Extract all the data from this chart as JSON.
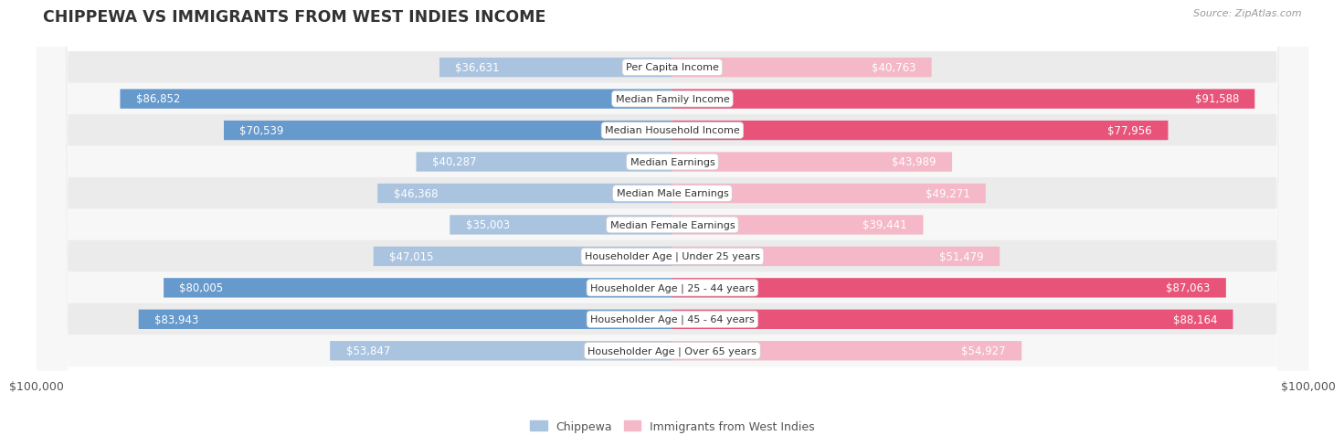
{
  "title": "CHIPPEWA VS IMMIGRANTS FROM WEST INDIES INCOME",
  "source": "Source: ZipAtlas.com",
  "max_value": 100000,
  "categories": [
    "Per Capita Income",
    "Median Family Income",
    "Median Household Income",
    "Median Earnings",
    "Median Male Earnings",
    "Median Female Earnings",
    "Householder Age | Under 25 years",
    "Householder Age | 25 - 44 years",
    "Householder Age | 45 - 64 years",
    "Householder Age | Over 65 years"
  ],
  "chippewa": [
    36631,
    86852,
    70539,
    40287,
    46368,
    35003,
    47015,
    80005,
    83943,
    53847
  ],
  "west_indies": [
    40763,
    91588,
    77956,
    43989,
    49271,
    39441,
    51479,
    87063,
    88164,
    54927
  ],
  "chippewa_labels": [
    "$36,631",
    "$86,852",
    "$70,539",
    "$40,287",
    "$46,368",
    "$35,003",
    "$47,015",
    "$80,005",
    "$83,943",
    "$53,847"
  ],
  "west_indies_labels": [
    "$40,763",
    "$91,588",
    "$77,956",
    "$43,989",
    "$49,271",
    "$39,441",
    "$51,479",
    "$87,063",
    "$88,164",
    "$54,927"
  ],
  "chippewa_color_light": "#aac4e0",
  "chippewa_color_dark": "#6699cc",
  "west_indies_color_light": "#f4b8c8",
  "west_indies_color_dark": "#e8537a",
  "dark_threshold": 65000,
  "bar_height": 0.62,
  "row_bg_odd": "#ebebeb",
  "row_bg_even": "#f7f7f7",
  "background_color": "#ffffff",
  "legend_chippewa": "Chippewa",
  "legend_west_indies": "Immigrants from West Indies",
  "inside_threshold": 20000,
  "label_fontsize": 8.5,
  "category_fontsize": 8.0,
  "title_fontsize": 12.5
}
